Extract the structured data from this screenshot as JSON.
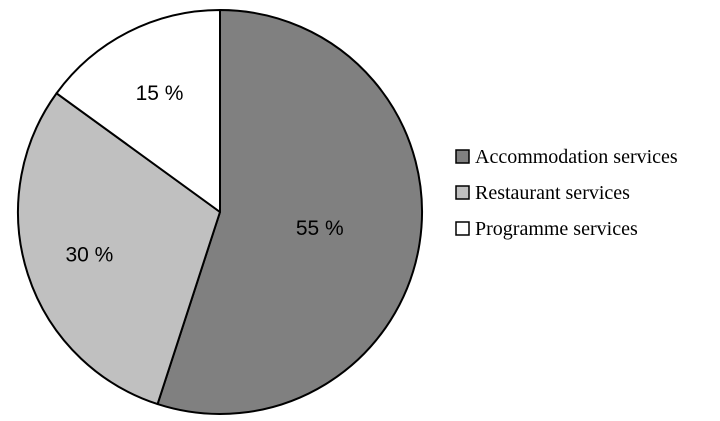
{
  "chart_data": {
    "type": "pie",
    "title": "",
    "start_angle_deg": 0,
    "direction": "clockwise",
    "legend_position": "right",
    "slices": [
      {
        "label": "Accommodation services",
        "value": 55,
        "value_label": "55 %",
        "color": "#808080"
      },
      {
        "label": "Restaurant services",
        "value": 30,
        "value_label": "30 %",
        "color": "#c0c0c0"
      },
      {
        "label": "Programme services",
        "value": 15,
        "value_label": "15 %",
        "color": "#ffffff"
      }
    ]
  }
}
